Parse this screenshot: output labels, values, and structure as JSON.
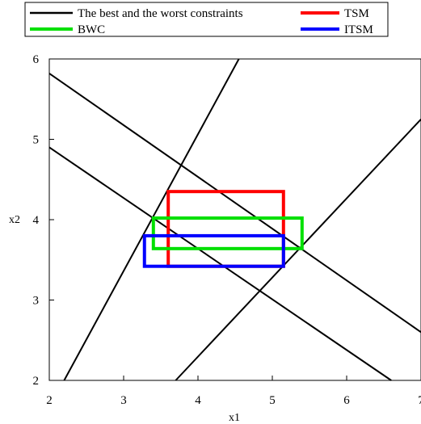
{
  "chart_data": {
    "type": "line",
    "title": "",
    "xlabel": "x1",
    "ylabel": "x2",
    "xlim": [
      2,
      7
    ],
    "ylim": [
      2,
      6
    ],
    "xticks": [
      "2",
      "3",
      "4",
      "5",
      "6",
      "7"
    ],
    "yticks": [
      "2",
      "3",
      "4",
      "5",
      "6"
    ],
    "grid": false,
    "legend_placement": "top",
    "legend": [
      {
        "label": "The best and the worst constraints",
        "color": "#000000"
      },
      {
        "label": "TSM",
        "color": "#ff0000"
      },
      {
        "label": "BWC",
        "color": "#00e000"
      },
      {
        "label": "ITSM",
        "color": "#0000ff"
      }
    ],
    "series": [
      {
        "name": "The best and the worst constraints",
        "color": "#000000",
        "kind": "lines",
        "lines": [
          [
            [
              2.2,
              2.0
            ],
            [
              4.55,
              6.0
            ]
          ],
          [
            [
              3.7,
              2.0
            ],
            [
              7.0,
              5.25
            ]
          ],
          [
            [
              2.0,
              5.82
            ],
            [
              7.0,
              2.6
            ]
          ],
          [
            [
              2.0,
              4.9
            ],
            [
              6.6,
              2.0
            ]
          ]
        ]
      },
      {
        "name": "TSM",
        "color": "#ff0000",
        "kind": "rect",
        "x": [
          3.6,
          5.15
        ],
        "y": [
          3.42,
          4.35
        ]
      },
      {
        "name": "BWC",
        "color": "#00e000",
        "kind": "rect",
        "x": [
          3.4,
          5.4
        ],
        "y": [
          3.64,
          4.02
        ]
      },
      {
        "name": "ITSM",
        "color": "#0000ff",
        "kind": "rect",
        "x": [
          3.28,
          5.15
        ],
        "y": [
          3.42,
          3.8
        ]
      }
    ]
  }
}
